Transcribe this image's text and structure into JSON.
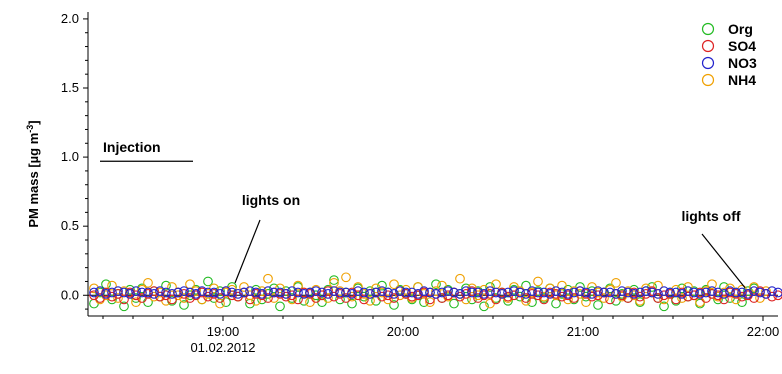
{
  "chart_data": {
    "type": "scatter",
    "title": "",
    "ylabel_main": "PM mass [µg m",
    "ylabel_sup": "-3",
    "ylabel_end": "]",
    "xlabel": "",
    "ylim": [
      -0.15,
      2.05
    ],
    "xlim": [
      "18:15",
      "22:05"
    ],
    "x_unit": "time (HH:MM) on 01.02.2012",
    "y_ticks": [
      "0.0",
      "0.5",
      "1.0",
      "1.5",
      "2.0"
    ],
    "y_tick_values": [
      0.0,
      0.5,
      1.0,
      1.5,
      2.0
    ],
    "x_ticks": [
      "19:00",
      "20:00",
      "21:00",
      "22:00"
    ],
    "x_date_label": "01.02.2012",
    "grid": false,
    "legend_placement": "top-right",
    "sample_interval_min": 2,
    "series": [
      {
        "name": "Org",
        "color": "#22bb22",
        "values": [
          -0.06,
          0.02,
          0.08,
          -0.03,
          0.01,
          -0.08,
          0.04,
          -0.02,
          0.05,
          -0.05,
          0.03,
          -0.01,
          0.07,
          -0.04,
          0.02,
          -0.07,
          0.0,
          0.04,
          -0.03,
          0.1,
          -0.02,
          0.03,
          -0.05,
          0.06,
          -0.01,
          0.02,
          -0.06,
          0.04,
          -0.03,
          0.01,
          0.05,
          -0.08,
          0.03,
          -0.02,
          0.06,
          -0.04,
          0.02,
          0.0,
          -0.05,
          0.04,
          0.11,
          -0.03,
          0.02,
          -0.06,
          0.05,
          -0.01,
          0.03,
          -0.04,
          0.07,
          0.02,
          -0.07,
          0.04,
          0.01,
          -0.03,
          0.06,
          -0.05,
          0.02,
          0.08,
          -0.02,
          0.04,
          -0.06,
          0.01,
          0.05,
          -0.03,
          0.03,
          -0.08,
          0.06,
          -0.02,
          0.02,
          -0.04,
          0.04,
          -0.01,
          0.07,
          -0.05,
          0.03,
          -0.02,
          0.05,
          -0.06,
          0.01,
          0.04,
          -0.03,
          0.06,
          -0.01,
          0.03,
          -0.07,
          0.02,
          0.05,
          -0.04,
          0.01,
          -0.02,
          0.04,
          -0.05,
          0.03,
          0.06,
          -0.02,
          -0.08,
          0.02,
          -0.04,
          0.05,
          -0.01,
          0.03,
          -0.06,
          0.04,
          0.01,
          -0.03,
          0.06,
          -0.02,
          0.02,
          -0.05,
          0.03,
          0.05
        ]
      },
      {
        "name": "SO4",
        "color": "#dd2222",
        "values": [
          0.0,
          -0.02,
          0.02,
          -0.01,
          0.01,
          -0.03,
          0.02,
          0.0,
          -0.02,
          0.01,
          0.03,
          -0.01,
          0.0,
          -0.03,
          0.02,
          0.01,
          -0.02,
          0.0,
          0.02,
          -0.01,
          0.01,
          -0.02,
          0.03,
          0.0,
          -0.01,
          0.02,
          -0.03,
          0.01,
          0.0,
          -0.02,
          0.02,
          0.01,
          -0.01,
          0.0,
          -0.03,
          0.02,
          0.01,
          -0.02,
          0.0,
          0.03,
          -0.01,
          0.01,
          -0.02,
          0.02,
          0.0,
          -0.03,
          0.01,
          0.02,
          -0.01,
          0.0,
          -0.02,
          0.03,
          0.01,
          -0.01,
          0.0,
          0.02,
          -0.03,
          0.01,
          -0.02,
          0.0,
          0.02,
          -0.01,
          0.01,
          0.03,
          -0.02,
          0.0,
          0.01,
          -0.03,
          0.02,
          -0.01,
          0.0,
          0.02,
          -0.02,
          0.01,
          0.0,
          -0.03,
          0.02,
          0.01,
          -0.01,
          0.0,
          -0.02,
          0.03,
          0.01,
          -0.01,
          0.0,
          0.02,
          -0.03,
          0.01,
          0.0,
          -0.02,
          0.02,
          -0.01,
          0.01,
          0.03,
          -0.02,
          0.0,
          0.01,
          -0.03,
          0.02,
          -0.01,
          0.0,
          0.02,
          -0.02,
          0.01,
          0.0,
          -0.03,
          0.02,
          0.01,
          -0.01,
          0.0,
          -0.02,
          0.03,
          0.01,
          -0.01,
          0.0
        ]
      },
      {
        "name": "NO3",
        "color": "#2222cc",
        "values": [
          0.02,
          0.03,
          0.01,
          0.02,
          0.03,
          0.02,
          0.01,
          0.03,
          0.02,
          0.02,
          0.01,
          0.03,
          0.02,
          0.01,
          0.02,
          0.03,
          0.02,
          0.01,
          0.03,
          0.02,
          0.02,
          0.01,
          0.03,
          0.02,
          0.01,
          0.02,
          0.03,
          0.02,
          0.01,
          0.03,
          0.02,
          0.02,
          0.01,
          0.03,
          0.02,
          0.01,
          0.02,
          0.03,
          0.02,
          0.01,
          0.03,
          0.02,
          0.02,
          0.01,
          0.03,
          0.02,
          0.01,
          0.02,
          0.03,
          0.02,
          0.01,
          0.03,
          0.02,
          0.02,
          0.01,
          0.03,
          0.02,
          0.01,
          0.02,
          0.03,
          0.02,
          0.01,
          0.03,
          0.02,
          0.02,
          0.01,
          0.03,
          0.02,
          0.01,
          0.02,
          0.03,
          0.02,
          0.01,
          0.03,
          0.02,
          0.02,
          0.01,
          0.03,
          0.02,
          0.01,
          0.02,
          0.03,
          0.02,
          0.01,
          0.03,
          0.02,
          0.02,
          0.01,
          0.03,
          0.02,
          0.01,
          0.02,
          0.03,
          0.02,
          0.01,
          0.03,
          0.02,
          0.02,
          0.01,
          0.03,
          0.02,
          0.01,
          0.02,
          0.03,
          0.02,
          0.01,
          0.03,
          0.02,
          0.02,
          0.01,
          0.03,
          0.02,
          0.01,
          0.03,
          0.02
        ]
      },
      {
        "name": "NH4",
        "color": "#f0a000",
        "values": [
          0.05,
          -0.03,
          0.0,
          0.07,
          -0.02,
          0.03,
          0.01,
          -0.05,
          0.04,
          0.09,
          -0.01,
          0.02,
          -0.04,
          0.06,
          0.0,
          -0.02,
          0.08,
          0.03,
          -0.03,
          0.01,
          0.05,
          -0.06,
          0.02,
          0.04,
          -0.01,
          0.06,
          0.0,
          -0.04,
          0.03,
          0.12,
          -0.02,
          0.05,
          0.01,
          -0.03,
          0.07,
          0.02,
          -0.05,
          0.04,
          0.0,
          -0.02,
          0.09,
          0.03,
          0.13,
          -0.01,
          0.06,
          0.01,
          -0.04,
          0.05,
          0.02,
          -0.03,
          0.08,
          0.0,
          0.04,
          -0.02,
          0.06,
          0.01,
          -0.05,
          0.03,
          0.07,
          -0.01,
          0.02,
          0.12,
          -0.03,
          0.05,
          0.0,
          0.04,
          -0.06,
          0.08,
          0.01,
          -0.02,
          0.06,
          0.03,
          -0.04,
          0.02,
          0.1,
          -0.01,
          0.05,
          0.0,
          0.07,
          -0.03,
          0.03,
          0.01,
          -0.05,
          0.06,
          0.02,
          -0.02,
          0.04,
          0.09,
          -0.01,
          0.03,
          0.0,
          -0.04,
          0.05,
          0.02,
          0.07,
          -0.03,
          0.01,
          0.04,
          -0.02,
          0.06,
          0.0,
          -0.05,
          0.03,
          0.08,
          -0.01,
          0.02,
          0.05,
          -0.03,
          0.04,
          0.01,
          0.06,
          -0.02,
          0.03
        ]
      }
    ],
    "annotations": [
      {
        "text": "Injection",
        "y": 0.97,
        "x_start": "18:15",
        "x_end": "18:55"
      },
      {
        "text": "lights on",
        "x": "19:04",
        "y": 0.06
      },
      {
        "text": "lights off",
        "x": "21:54",
        "y": 0.04
      }
    ]
  }
}
